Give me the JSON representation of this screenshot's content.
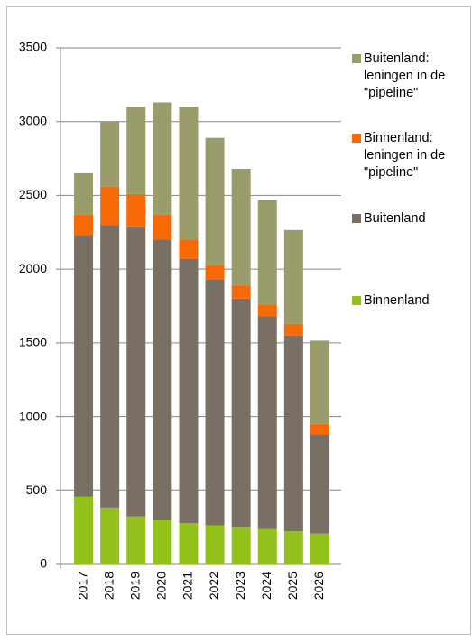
{
  "chart_data": {
    "type": "stacked_bar",
    "categories": [
      "2017",
      "2018",
      "2019",
      "2020",
      "2021",
      "2022",
      "2023",
      "2024",
      "2025",
      "2026"
    ],
    "series": [
      {
        "name": "Binnenland",
        "color": "#92c11c",
        "values": [
          460,
          380,
          320,
          300,
          280,
          265,
          250,
          240,
          225,
          210
        ]
      },
      {
        "name": "Buitenland",
        "color": "#7a6f64",
        "values": [
          1770,
          1920,
          1970,
          1900,
          1790,
          1665,
          1550,
          1440,
          1325,
          670
        ]
      },
      {
        "name": "Binnenland: leningen in de \"pipeline\"",
        "color": "#f56a06",
        "values": [
          140,
          260,
          220,
          170,
          130,
          100,
          90,
          80,
          80,
          70
        ]
      },
      {
        "name": "Buitenland: leningen in de \"pipeline\"",
        "color": "#9a9c6b",
        "values": [
          280,
          440,
          590,
          760,
          900,
          860,
          790,
          710,
          635,
          565
        ]
      }
    ],
    "ylim": [
      0,
      3500
    ],
    "yticks": [
      0,
      500,
      1000,
      1500,
      2000,
      2500,
      3000,
      3500
    ],
    "grid": true
  }
}
